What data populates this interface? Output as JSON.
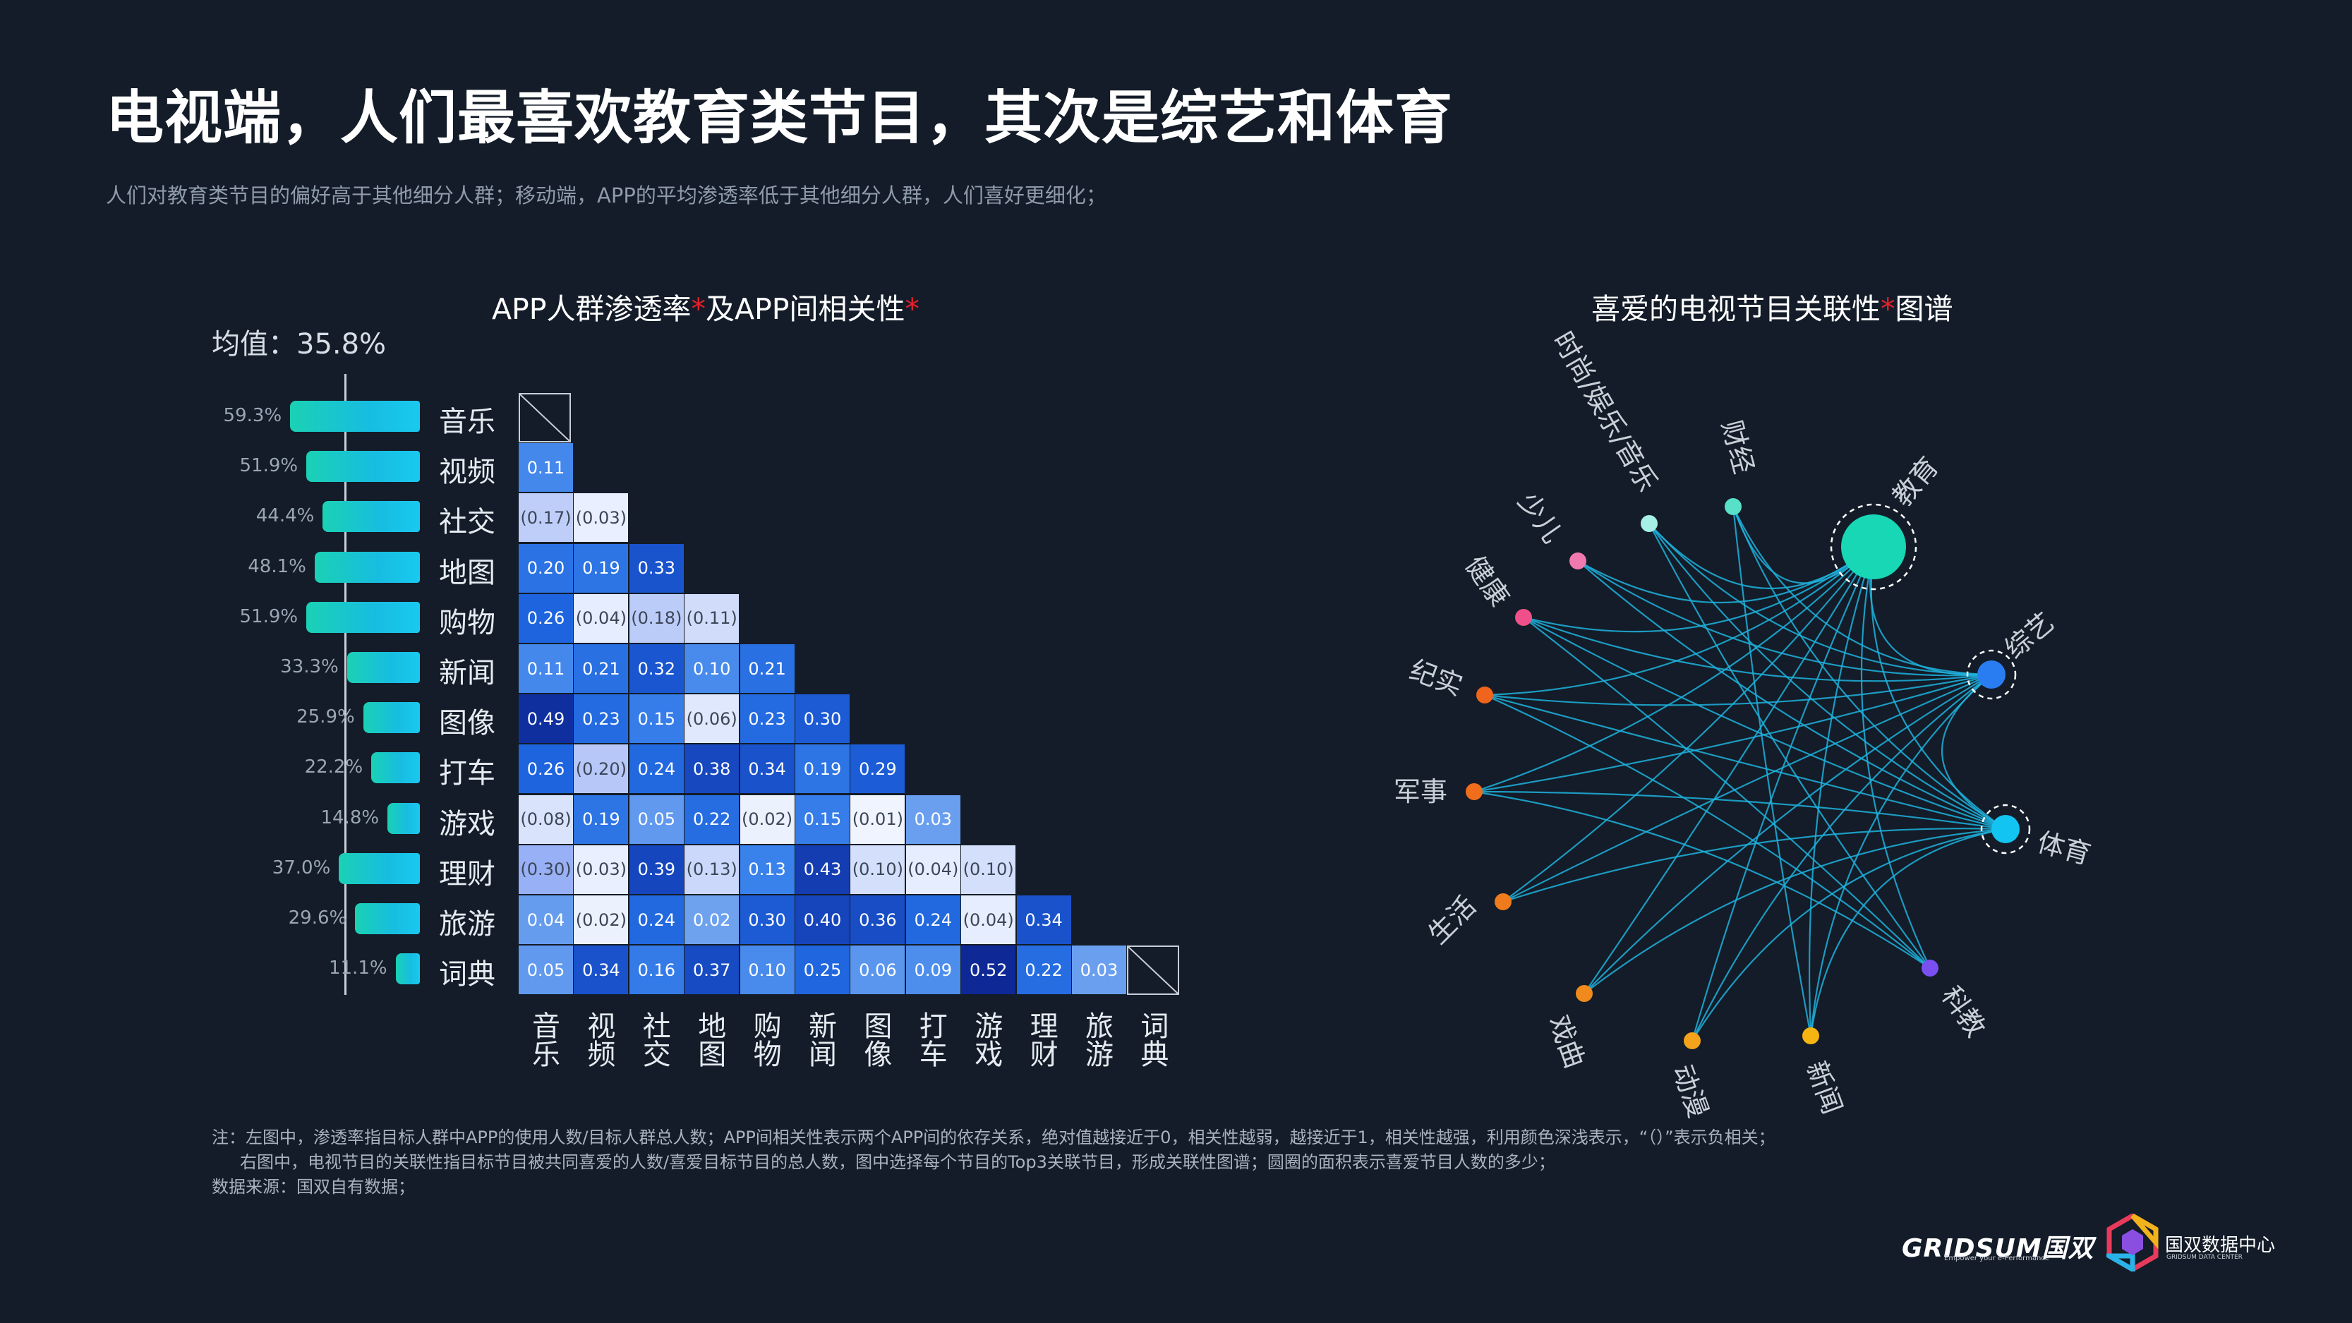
{
  "title": "电视端，人们最喜欢教育类节目，其次是综艺和体育",
  "subtitle": "人们对教育类节目的偏好高于其他细分人群；移动端，APP的平均渗透率低于其他细分人群，人们喜好更细化；",
  "left_chart_title": {
    "part1": "APP人群渗透率",
    "star1": "*",
    "part2": "及APP间相关性",
    "star2": "*"
  },
  "right_chart_title": {
    "part1": "喜爱的电视节目关联性",
    "star1": "*",
    "part2": "图谱"
  },
  "mean_label": "均值：35.8%",
  "notes": [
    "注：左图中，渗透率指目标人群中APP的使用人数/目标人群总人数；APP间相关性表示两个APP间的依存关系，绝对值越接近于0，相关性越弱，越接近于1，相关性越强，利用颜色深浅表示，“（）”表示负相关；",
    "右图中，电视节目的关联性指目标节目被共同喜爱的人数/喜爱目标节目的总人数，图中选择每个节目的Top3关联节目，形成关联性图谱；圆圈的面积表示喜爱节目人数的多少；",
    "数据来源：国双自有数据；"
  ],
  "logos": {
    "gridsum": "GRIDSUM国双",
    "gridsum_tagline": "Empower your e-Performance",
    "data_center": "国双数据中心",
    "data_center_en": "GRIDSUM DATA CENTER"
  },
  "colors": {
    "background": "#131c28",
    "bar": "#17c6d8",
    "accent_star": "#e8202a",
    "network_line": "#1fb2dd"
  },
  "chart_data": [
    {
      "type": "bar",
      "orientation": "horizontal",
      "categories": [
        "音乐",
        "视频",
        "社交",
        "地图",
        "购物",
        "新闻",
        "图像",
        "打车",
        "游戏",
        "理财",
        "旅游",
        "词典"
      ],
      "labels": [
        "59.3%",
        "51.9%",
        "44.4%",
        "48.1%",
        "51.9%",
        "33.3%",
        "25.9%",
        "22.2%",
        "14.8%",
        "37.0%",
        "29.6%",
        "11.1%"
      ],
      "values": [
        59.3,
        51.9,
        44.4,
        48.1,
        51.9,
        33.3,
        25.9,
        22.2,
        14.8,
        37.0,
        29.6,
        11.1
      ],
      "unit": "%",
      "mean": 35.8
    },
    {
      "type": "heatmap",
      "shape": "lower-triangular",
      "row_categories": [
        "音乐",
        "视频",
        "社交",
        "地图",
        "购物",
        "新闻",
        "图像",
        "打车",
        "游戏",
        "理财",
        "旅游",
        "词典"
      ],
      "column_categories": [
        "音乐",
        "视频",
        "社交",
        "地图",
        "购物",
        "新闻",
        "图像",
        "打车",
        "游戏",
        "理财",
        "旅游",
        "词典"
      ],
      "column_labels": [
        [
          "音",
          "乐"
        ],
        [
          "视",
          "频"
        ],
        [
          "社",
          "交"
        ],
        [
          "地",
          "图"
        ],
        [
          "购",
          "物"
        ],
        [
          "新",
          "闻"
        ],
        [
          "图",
          "像"
        ],
        [
          "打",
          "车"
        ],
        [
          "游",
          "戏"
        ],
        [
          "理",
          "财"
        ],
        [
          "旅",
          "游"
        ],
        [
          "词",
          "典"
        ]
      ],
      "values": [
        [],
        [
          0.11
        ],
        [
          -0.17,
          -0.03
        ],
        [
          0.2,
          0.19,
          0.33
        ],
        [
          0.26,
          -0.04,
          -0.18,
          -0.11
        ],
        [
          0.11,
          0.21,
          0.32,
          0.1,
          0.21
        ],
        [
          0.49,
          0.23,
          0.15,
          -0.06,
          0.23,
          0.3
        ],
        [
          0.26,
          -0.2,
          0.24,
          0.38,
          0.34,
          0.19,
          0.29
        ],
        [
          -0.08,
          0.19,
          0.05,
          0.22,
          -0.02,
          0.15,
          -0.01,
          0.03
        ],
        [
          -0.3,
          -0.03,
          0.39,
          -0.13,
          0.13,
          0.43,
          -0.1,
          -0.04,
          -0.1
        ],
        [
          0.04,
          -0.02,
          0.24,
          0.02,
          0.3,
          0.4,
          0.36,
          0.24,
          -0.04,
          0.34
        ],
        [
          0.05,
          0.34,
          0.16,
          0.37,
          0.1,
          0.25,
          0.06,
          0.09,
          0.52,
          0.22,
          0.03
        ]
      ],
      "display": [
        [],
        [
          "0.11"
        ],
        [
          "(0.17)",
          "(0.03)"
        ],
        [
          "0.20",
          "0.19",
          "0.33"
        ],
        [
          "0.26",
          "(0.04)",
          "(0.18)",
          "(0.11)"
        ],
        [
          "0.11",
          "0.21",
          "0.32",
          "0.10",
          "0.21"
        ],
        [
          "0.49",
          "0.23",
          "0.15",
          "(0.06)",
          "0.23",
          "0.30"
        ],
        [
          "0.26",
          "(0.20)",
          "0.24",
          "0.38",
          "0.34",
          "0.19",
          "0.29"
        ],
        [
          "(0.08)",
          "0.19",
          "0.05",
          "0.22",
          "(0.02)",
          "0.15",
          "(0.01)",
          "0.03"
        ],
        [
          "(0.30)",
          "(0.03)",
          "0.39",
          "(0.13)",
          "0.13",
          "0.43",
          "(0.10)",
          "(0.04)",
          "(0.10)"
        ],
        [
          "0.04",
          "(0.02)",
          "0.24",
          "0.02",
          "0.30",
          "0.40",
          "0.36",
          "0.24",
          "(0.04)",
          "0.34"
        ],
        [
          "0.05",
          "0.34",
          "0.16",
          "0.37",
          "0.10",
          "0.25",
          "0.06",
          "0.09",
          "0.52",
          "0.22",
          "0.03"
        ]
      ]
    },
    {
      "type": "network",
      "layout": "circular",
      "nodes": [
        {
          "name": "教育",
          "color": "#17d7b5",
          "size": "large",
          "highlight": true
        },
        {
          "name": "综艺",
          "color": "#2a7df0",
          "size": "medium",
          "highlight": true
        },
        {
          "name": "体育",
          "color": "#12c4f2",
          "size": "medium",
          "highlight": true
        },
        {
          "name": "科教",
          "color": "#7a4ff0",
          "size": "small",
          "highlight": false
        },
        {
          "name": "新闻",
          "color": "#f4b512",
          "size": "small",
          "highlight": false
        },
        {
          "name": "动漫",
          "color": "#f3a21c",
          "size": "small",
          "highlight": false
        },
        {
          "name": "戏曲",
          "color": "#f08a1c",
          "size": "small",
          "highlight": false
        },
        {
          "name": "生活",
          "color": "#f07b1c",
          "size": "small",
          "highlight": false
        },
        {
          "name": "军事",
          "color": "#f06d1c",
          "size": "small",
          "highlight": false
        },
        {
          "name": "纪实",
          "color": "#f0641c",
          "size": "small",
          "highlight": false
        },
        {
          "name": "健康",
          "color": "#f0508a",
          "size": "small",
          "highlight": false
        },
        {
          "name": "少儿",
          "color": "#f07ab0",
          "size": "small",
          "highlight": false
        },
        {
          "name": "时尚/娱乐/音乐",
          "color": "#a6f0e6",
          "size": "small",
          "highlight": false
        },
        {
          "name": "财经",
          "color": "#58e0c8",
          "size": "small",
          "highlight": false
        }
      ],
      "edges": [
        [
          "教育",
          "综艺"
        ],
        [
          "教育",
          "体育"
        ],
        [
          "教育",
          "科教"
        ],
        [
          "教育",
          "新闻"
        ],
        [
          "教育",
          "动漫"
        ],
        [
          "教育",
          "戏曲"
        ],
        [
          "教育",
          "生活"
        ],
        [
          "教育",
          "军事"
        ],
        [
          "教育",
          "纪实"
        ],
        [
          "教育",
          "健康"
        ],
        [
          "教育",
          "少儿"
        ],
        [
          "教育",
          "时尚/娱乐/音乐"
        ],
        [
          "教育",
          "财经"
        ],
        [
          "综艺",
          "体育"
        ],
        [
          "综艺",
          "新闻"
        ],
        [
          "综艺",
          "动漫"
        ],
        [
          "综艺",
          "戏曲"
        ],
        [
          "综艺",
          "生活"
        ],
        [
          "综艺",
          "军事"
        ],
        [
          "综艺",
          "纪实"
        ],
        [
          "综艺",
          "健康"
        ],
        [
          "综艺",
          "少儿"
        ],
        [
          "综艺",
          "时尚/娱乐/音乐"
        ],
        [
          "综艺",
          "财经"
        ],
        [
          "体育",
          "新闻"
        ],
        [
          "体育",
          "动漫"
        ],
        [
          "体育",
          "戏曲"
        ],
        [
          "体育",
          "生活"
        ],
        [
          "体育",
          "军事"
        ],
        [
          "体育",
          "纪实"
        ],
        [
          "体育",
          "健康"
        ],
        [
          "体育",
          "少儿"
        ],
        [
          "体育",
          "时尚/娱乐/音乐"
        ],
        [
          "体育",
          "财经"
        ],
        [
          "科教",
          "纪实"
        ],
        [
          "科教",
          "时尚/娱乐/音乐"
        ],
        [
          "科教",
          "健康"
        ],
        [
          "科教",
          "军事"
        ],
        [
          "新闻",
          "财经"
        ]
      ]
    }
  ]
}
